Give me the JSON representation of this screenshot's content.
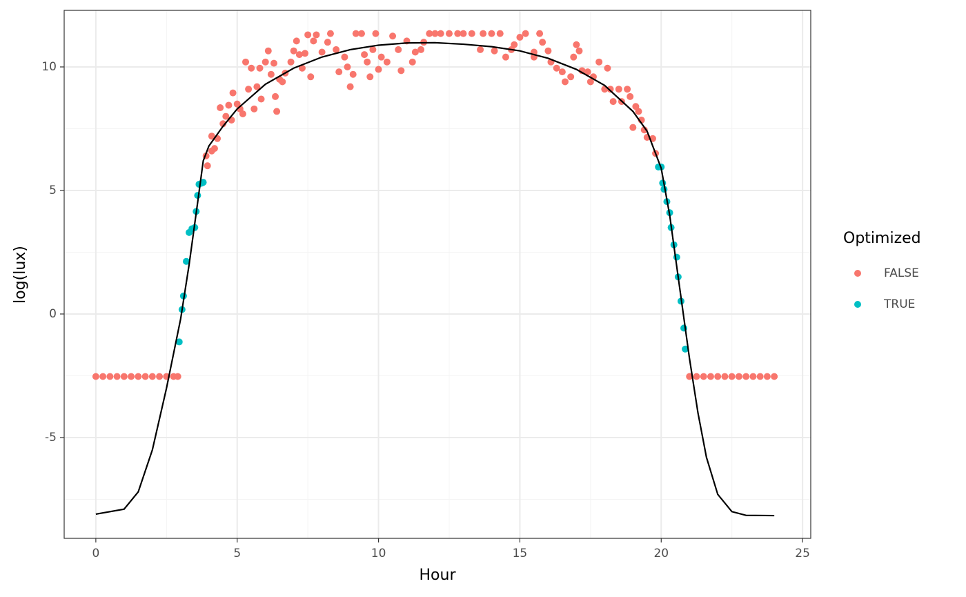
{
  "chart_data": {
    "type": "scatter",
    "x_label": "Hour",
    "y_label": "log(lux)",
    "legend_title": "Optimized",
    "legend_position": "right",
    "grid": true,
    "xlim": [
      -1.12,
      25.29
    ],
    "ylim": [
      -9.08,
      12.29
    ],
    "xticks": [
      0,
      5,
      10,
      15,
      20,
      25
    ],
    "yticks": [
      -5,
      0,
      5,
      10
    ],
    "series": [
      {
        "name": "FALSE",
        "color": "#F8766D",
        "kind": "point",
        "x": [
          0,
          0.25,
          0.5,
          0.75,
          1,
          1.25,
          1.5,
          1.75,
          2,
          2.25,
          2.5,
          2.75,
          2.9,
          3.9,
          3.95,
          4.1,
          4.2,
          4.1,
          4.3,
          4.4,
          4.5,
          4.6,
          4.7,
          4.8,
          4.85,
          5.0,
          5.1,
          5.2,
          5.3,
          5.4,
          5.5,
          5.6,
          5.7,
          5.8,
          5.85,
          6.0,
          6.1,
          6.2,
          6.3,
          6.35,
          6.4,
          6.5,
          6.6,
          6.7,
          6.9,
          7.0,
          7.1,
          7.2,
          7.3,
          7.4,
          7.6,
          7.5,
          7.7,
          7.8,
          8.0,
          8.2,
          8.3,
          8.5,
          8.6,
          8.8,
          8.9,
          9.0,
          9.1,
          9.2,
          9.4,
          9.5,
          9.6,
          9.7,
          9.8,
          9.9,
          10.0,
          10.1,
          10.3,
          10.5,
          10.7,
          10.8,
          11.0,
          11.2,
          11.3,
          11.5,
          11.6,
          11.8,
          12.0,
          12.2,
          12.5,
          12.8,
          13.0,
          13.3,
          13.6,
          13.7,
          14.0,
          14.1,
          14.3,
          14.5,
          14.7,
          14.8,
          15.0,
          15.2,
          15.5,
          15.5,
          15.7,
          15.8,
          16.0,
          16.1,
          16.3,
          16.5,
          16.6,
          16.8,
          16.9,
          17.0,
          17.1,
          17.2,
          17.4,
          17.5,
          17.6,
          17.8,
          18.0,
          18.1,
          18.2,
          18.3,
          18.5,
          18.6,
          18.8,
          18.9,
          19.0,
          19.1,
          19.2,
          19.3,
          19.4,
          19.5,
          19.7,
          19.8,
          21.0,
          21.25,
          21.5,
          21.75,
          22,
          22.25,
          22.5,
          22.75,
          23,
          23.25,
          23.5,
          23.75,
          24
        ],
        "values": [
          -2.53,
          -2.53,
          -2.53,
          -2.53,
          -2.53,
          -2.53,
          -2.53,
          -2.53,
          -2.53,
          -2.53,
          -2.53,
          -2.53,
          -2.53,
          6.4,
          6.0,
          6.6,
          6.7,
          7.2,
          7.1,
          8.35,
          7.7,
          8.0,
          8.45,
          7.85,
          8.95,
          8.5,
          8.3,
          8.1,
          10.2,
          9.1,
          9.95,
          8.3,
          9.2,
          9.95,
          8.7,
          10.2,
          10.65,
          9.7,
          10.15,
          8.8,
          8.2,
          9.5,
          9.4,
          9.75,
          10.2,
          10.65,
          11.05,
          10.5,
          9.95,
          10.55,
          9.6,
          11.3,
          11.05,
          11.3,
          10.6,
          11.0,
          11.35,
          10.7,
          9.8,
          10.4,
          10.0,
          9.2,
          9.7,
          11.35,
          11.35,
          10.5,
          10.2,
          9.6,
          10.7,
          11.35,
          9.9,
          10.4,
          10.2,
          11.25,
          10.7,
          9.85,
          11.05,
          10.2,
          10.6,
          10.7,
          11.0,
          11.35,
          11.35,
          11.35,
          11.35,
          11.35,
          11.35,
          11.35,
          10.7,
          11.35,
          11.35,
          10.65,
          11.35,
          10.4,
          10.7,
          10.9,
          11.2,
          11.35,
          10.6,
          10.4,
          11.35,
          11.0,
          10.65,
          10.2,
          9.95,
          9.8,
          9.4,
          9.6,
          10.4,
          10.9,
          10.65,
          9.85,
          9.8,
          9.4,
          9.6,
          10.2,
          9.1,
          9.95,
          9.1,
          8.6,
          9.1,
          8.6,
          9.1,
          8.8,
          7.55,
          8.4,
          8.2,
          7.85,
          7.45,
          7.15,
          7.1,
          6.5,
          -2.53,
          -2.53,
          -2.53,
          -2.53,
          -2.53,
          -2.53,
          -2.53,
          -2.53,
          -2.53,
          -2.53,
          -2.53,
          -2.53,
          -2.53
        ]
      },
      {
        "name": "TRUE",
        "color": "#00BFC4",
        "kind": "point",
        "x": [
          2.95,
          3.05,
          3.1,
          3.2,
          3.3,
          3.4,
          3.5,
          3.55,
          3.6,
          3.65,
          3.75,
          3.8,
          19.9,
          20.0,
          20.05,
          20.1,
          20.2,
          20.3,
          20.35,
          20.45,
          20.55,
          20.6,
          20.7,
          20.8,
          20.85
        ],
        "values": [
          -1.13,
          0.18,
          0.73,
          2.13,
          3.3,
          3.45,
          3.5,
          4.15,
          4.8,
          5.25,
          5.3,
          5.33,
          5.95,
          5.95,
          5.3,
          5.05,
          4.55,
          4.1,
          3.5,
          2.8,
          2.3,
          1.5,
          0.52,
          -0.57,
          -1.42
        ]
      },
      {
        "color": "#000000",
        "kind": "line",
        "x": [
          0,
          1,
          1.5,
          2,
          2.5,
          3,
          3.3,
          3.6,
          3.8,
          4.0,
          4.5,
          5,
          6,
          7,
          8,
          9,
          10,
          11,
          12,
          13,
          14,
          15,
          16,
          17,
          18,
          19,
          19.5,
          19.8,
          20,
          20.3,
          20.6,
          21,
          21.3,
          21.6,
          22,
          22.5,
          23,
          24
        ],
        "values": [
          -8.1,
          -7.9,
          -7.2,
          -5.5,
          -3.0,
          -0.2,
          2.0,
          4.5,
          6.2,
          6.8,
          7.6,
          8.3,
          9.3,
          9.95,
          10.4,
          10.7,
          10.88,
          10.97,
          10.98,
          10.92,
          10.82,
          10.65,
          10.35,
          9.9,
          9.25,
          8.2,
          7.4,
          6.5,
          5.9,
          4.0,
          1.5,
          -1.8,
          -4.0,
          -5.8,
          -7.3,
          -8.0,
          -8.15,
          -8.16
        ]
      }
    ]
  }
}
